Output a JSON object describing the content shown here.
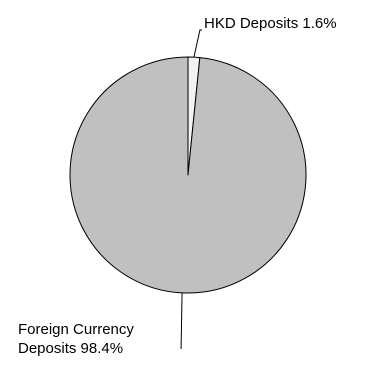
{
  "chart_data": {
    "type": "pie",
    "title": "",
    "slices": [
      {
        "label_lines": [
          "HKD Deposits 1.6%"
        ],
        "category": "HKD Deposits",
        "value": 1.6,
        "unit": "%",
        "color": "#f2f2f2"
      },
      {
        "label_lines": [
          "Foreign Currency",
          "Deposits 98.4%"
        ],
        "category": "Foreign Currency Deposits",
        "value": 98.4,
        "unit": "%",
        "color": "#c0c0c0"
      }
    ],
    "legend": "none",
    "grid": false
  }
}
